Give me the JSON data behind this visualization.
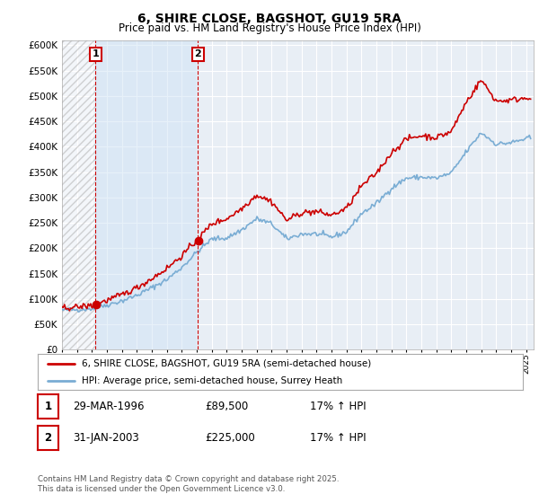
{
  "title": "6, SHIRE CLOSE, BAGSHOT, GU19 5RA",
  "subtitle": "Price paid vs. HM Land Registry's House Price Index (HPI)",
  "ylim": [
    0,
    610000
  ],
  "yticks": [
    0,
    50000,
    100000,
    150000,
    200000,
    250000,
    300000,
    350000,
    400000,
    450000,
    500000,
    550000,
    600000
  ],
  "ytick_labels": [
    "£0",
    "£50K",
    "£100K",
    "£150K",
    "£200K",
    "£250K",
    "£300K",
    "£350K",
    "£400K",
    "£450K",
    "£500K",
    "£550K",
    "£600K"
  ],
  "xlim_start": 1994.0,
  "xlim_end": 2025.5,
  "bg_color": "#e8eef5",
  "grid_color": "#ffffff",
  "red_color": "#cc0000",
  "blue_color": "#7aadd4",
  "transaction1": {
    "year": 1996.23,
    "price": 89500,
    "label": "1"
  },
  "transaction2": {
    "year": 2003.08,
    "price": 225000,
    "label": "2"
  },
  "legend_line1": "6, SHIRE CLOSE, BAGSHOT, GU19 5RA (semi-detached house)",
  "legend_line2": "HPI: Average price, semi-detached house, Surrey Heath",
  "table_row1": [
    "1",
    "29-MAR-1996",
    "£89,500",
    "17% ↑ HPI"
  ],
  "table_row2": [
    "2",
    "31-JAN-2003",
    "£225,000",
    "17% ↑ HPI"
  ],
  "footnote": "Contains HM Land Registry data © Crown copyright and database right 2025.\nThis data is licensed under the Open Government Licence v3.0."
}
